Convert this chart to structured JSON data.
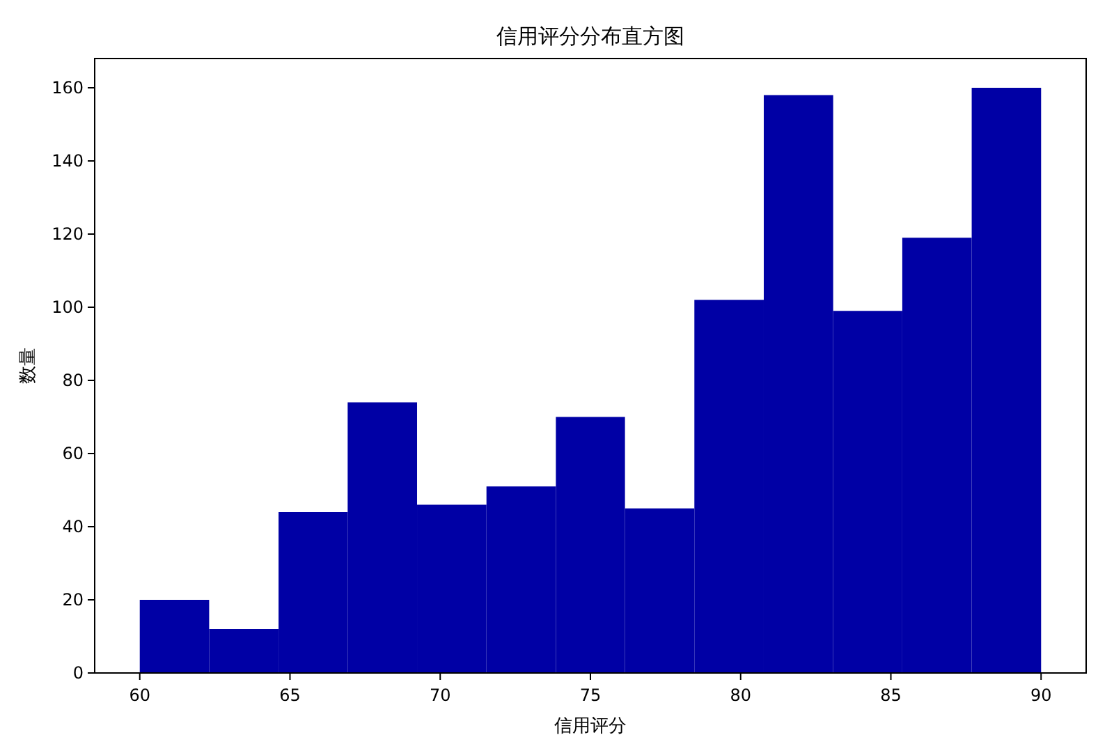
{
  "chart_data": {
    "type": "histogram",
    "title": "信用评分分布直方图",
    "xlabel": "信用评分",
    "ylabel": "数量",
    "bins": [
      60,
      62.31,
      64.62,
      66.92,
      69.23,
      71.54,
      73.85,
      76.15,
      78.46,
      80.77,
      83.08,
      85.38,
      87.69,
      90
    ],
    "values": [
      20,
      12,
      44,
      74,
      46,
      51,
      70,
      45,
      102,
      158,
      99,
      119,
      160
    ],
    "color": "#0000a5",
    "xlim": [
      58.5,
      91.5
    ],
    "xticks": [
      60,
      65,
      70,
      75,
      80,
      85,
      90
    ],
    "ylim": [
      0,
      168
    ],
    "yticks": [
      0,
      20,
      40,
      60,
      80,
      100,
      120,
      140,
      160
    ],
    "grid": false
  }
}
